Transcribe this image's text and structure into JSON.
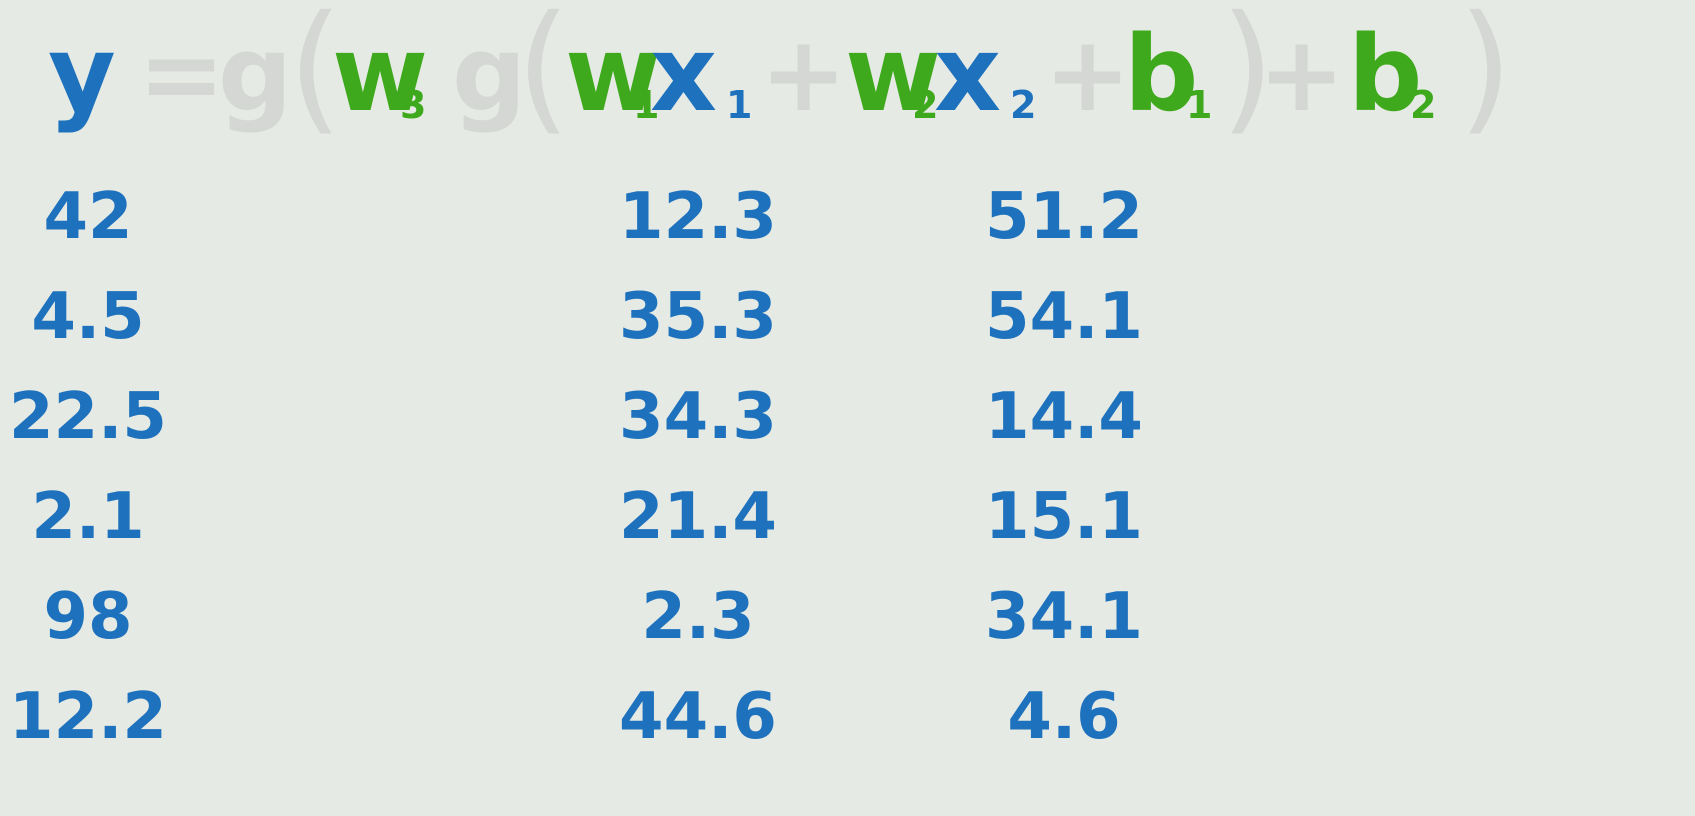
{
  "equation": {
    "y": "y",
    "equals": "=",
    "g_outer": "g",
    "open_outer": "(",
    "w3": "w",
    "w3_sub": "3",
    "g_inner": "g",
    "open_inner": "(",
    "w1": "w",
    "w1_sub": "1",
    "x1": "x",
    "x1_sub": "1",
    "plus1": "+",
    "w2": "w",
    "w2_sub": "2",
    "x2": "x",
    "x2_sub": "2",
    "plus2": "+",
    "b1": "b",
    "b1_sub": "1",
    "close_inner": ")",
    "plus3": "+",
    "b2": "b",
    "b2_sub": "2",
    "close_outer": ")"
  },
  "table": {
    "y": [
      "42",
      "4.5",
      "22.5",
      "2.1",
      "98",
      "12.2"
    ],
    "x1": [
      "12.3",
      "35.3",
      "34.3",
      "21.4",
      "2.3",
      "44.6"
    ],
    "x2": [
      "51.2",
      "54.1",
      "14.4",
      "15.1",
      "34.1",
      "4.6"
    ]
  },
  "colors": {
    "background": "#e6eae4",
    "variable_blue": "#1e72bd",
    "parameter_green": "#3ea91c",
    "faded_gray": "#d4d7d3"
  }
}
